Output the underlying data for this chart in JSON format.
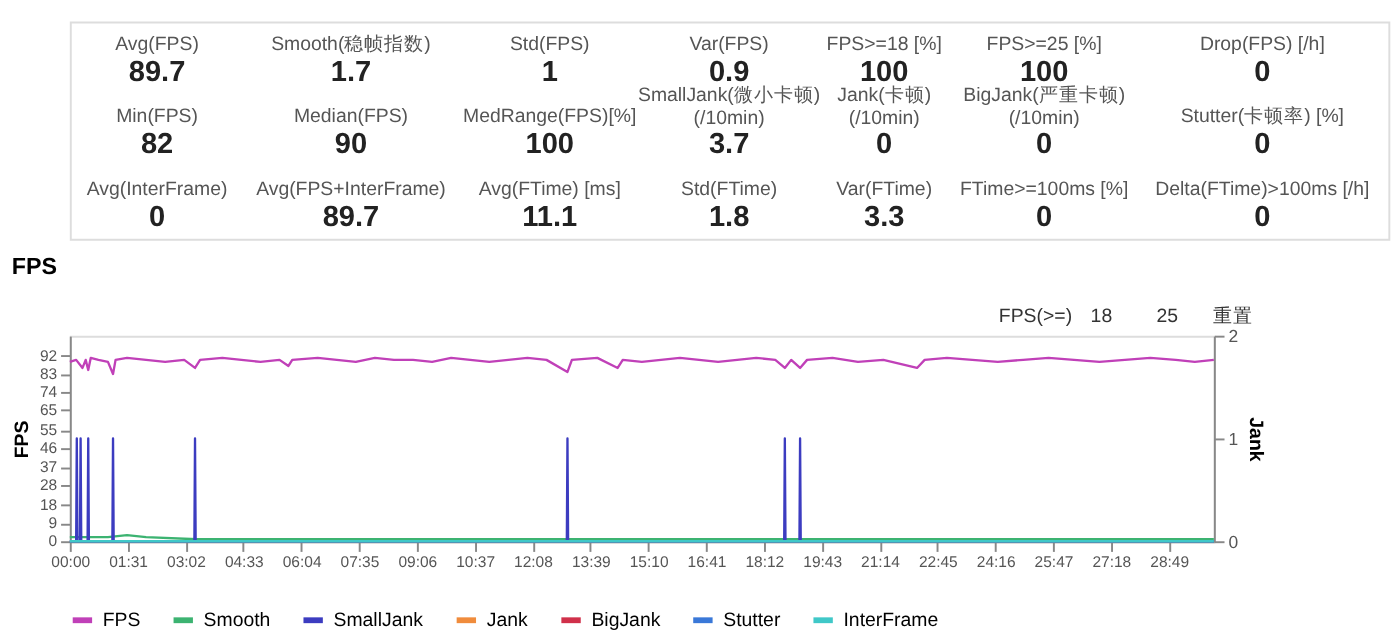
{
  "chart_data": [
    {
      "type": "other",
      "data_labels": true,
      "categories": [
        "Avg(FPS)",
        "Smooth(稳帧指数)",
        "Std(FPS)",
        "Var(FPS)",
        "FPS>=18 [%]",
        "FPS>=25 [%]",
        "Drop(FPS) [/h]",
        "Min(FPS)",
        "Median(FPS)",
        "MedRange(FPS)[%]",
        "SmallJank(微小卡顿)\n(/10min)",
        "Jank(卡顿)\n(/10min)",
        "BigJank(严重卡顿)\n(/10min)",
        "Stutter(卡顿率) [%]",
        "Avg(InterFrame)",
        "Avg(FPS+InterFrame)",
        "Avg(FTime) [ms]",
        "Std(FTime)",
        "Var(FTime)",
        "FTime>=100ms [%]",
        "Delta(FTime)>100ms [/h]"
      ],
      "values": [
        89.7,
        1.7,
        1,
        0.9,
        100,
        100,
        0,
        82,
        90,
        100,
        3.7,
        0,
        0,
        0,
        0,
        89.7,
        11.1,
        1.8,
        3.3,
        0,
        0
      ]
    },
    {
      "type": "line",
      "title": "FPS",
      "ylabel": "FPS",
      "y2label": "Jank",
      "legend": "bottom",
      "annotations": [
        "FPS(>=)",
        "18",
        "25",
        "重置"
      ],
      "xlim": [
        0,
        1800
      ],
      "xticks": [
        {
          "value": 0,
          "label": "00:00"
        },
        {
          "value": 91,
          "label": "01:31"
        },
        {
          "value": 182,
          "label": "03:02"
        },
        {
          "value": 273,
          "label": "04:33"
        },
        {
          "value": 364,
          "label": "06:04"
        },
        {
          "value": 455,
          "label": "07:35"
        },
        {
          "value": 546,
          "label": "09:06"
        },
        {
          "value": 637,
          "label": "10:37"
        },
        {
          "value": 728,
          "label": "12:08"
        },
        {
          "value": 819,
          "label": "13:39"
        },
        {
          "value": 910,
          "label": "15:10"
        },
        {
          "value": 1001,
          "label": "16:41"
        },
        {
          "value": 1092,
          "label": "18:12"
        },
        {
          "value": 1183,
          "label": "19:43"
        },
        {
          "value": 1274,
          "label": "21:14"
        },
        {
          "value": 1365,
          "label": "22:45"
        },
        {
          "value": 1456,
          "label": "24:16"
        },
        {
          "value": 1547,
          "label": "25:47"
        },
        {
          "value": 1638,
          "label": "27:18"
        },
        {
          "value": 1729,
          "label": "28:49"
        }
      ],
      "ylim": [
        0,
        102
      ],
      "yticks": [
        0,
        9,
        18,
        28,
        37,
        46,
        55,
        65,
        74,
        83,
        92
      ],
      "y2lim": [
        0,
        2
      ],
      "y2ticks": [
        0,
        1,
        2
      ],
      "series": [
        {
          "name": "FPS",
          "color": "#c040b8",
          "x": [
            0,
            10,
            20,
            25,
            29,
            33,
            45,
            60,
            68,
            72,
            90,
            120,
            150,
            180,
            197,
            205,
            240,
            270,
            300,
            330,
            344,
            350,
            390,
            420,
            450,
            480,
            510,
            540,
            570,
            600,
            630,
            660,
            690,
            720,
            750,
            783,
            790,
            830,
            862,
            870,
            900,
            930,
            960,
            990,
            1020,
            1050,
            1080,
            1110,
            1125,
            1135,
            1149,
            1160,
            1200,
            1240,
            1280,
            1333,
            1345,
            1380,
            1420,
            1460,
            1500,
            1540,
            1580,
            1620,
            1660,
            1700,
            1740,
            1770,
            1800
          ],
          "values": [
            89,
            90,
            86,
            90,
            85,
            91,
            90,
            89,
            83,
            90,
            91,
            90,
            89,
            90,
            86,
            90,
            91,
            90,
            89,
            90,
            87,
            90,
            91,
            90,
            89,
            91,
            90,
            90,
            89,
            91,
            90,
            89,
            90,
            91,
            90,
            84,
            90,
            91,
            86,
            90,
            89,
            90,
            91,
            90,
            89,
            90,
            91,
            90,
            86,
            90,
            86,
            90,
            91,
            89,
            90,
            86,
            90,
            91,
            90,
            89,
            90,
            91,
            90,
            89,
            90,
            91,
            90,
            89,
            90
          ]
        },
        {
          "name": "Smooth",
          "color": "#3cb371",
          "x": [
            0,
            60,
            90,
            120,
            200,
            300,
            450,
            600,
            800,
            1000,
            1200,
            1400,
            1600,
            1800
          ],
          "values": [
            2,
            2,
            3,
            2,
            1,
            1,
            1,
            1,
            1,
            1,
            1,
            1,
            1,
            1
          ]
        },
        {
          "name": "SmallJank",
          "color": "#3c3cc0",
          "axis": "y2",
          "x": [
            0,
            10,
            11,
            12,
            16,
            17,
            18,
            28,
            29,
            30,
            67,
            68,
            69,
            196,
            197,
            198,
            782,
            783,
            784,
            1124,
            1125,
            1126,
            1148,
            1149,
            1150,
            1800
          ],
          "values": [
            0,
            0,
            1,
            0,
            0,
            1,
            0,
            0,
            1,
            0,
            0,
            1,
            0,
            0,
            1,
            0,
            0,
            1,
            0,
            0,
            1,
            0,
            0,
            1,
            0,
            0
          ]
        },
        {
          "name": "Jank",
          "color": "#f08c3c"
        },
        {
          "name": "BigJank",
          "color": "#d0304a"
        },
        {
          "name": "Stutter",
          "color": "#3a78d8"
        },
        {
          "name": "InterFrame",
          "color": "#40c8c8",
          "axis": "y2",
          "x": [
            0,
            1800
          ],
          "values": [
            0,
            0
          ]
        }
      ]
    }
  ]
}
